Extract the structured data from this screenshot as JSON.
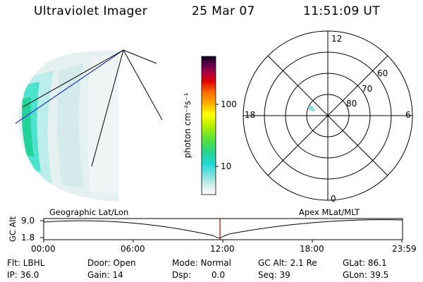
{
  "header": {
    "instrument": "Ultraviolet Imager",
    "date": "25 Mar 07",
    "time": "11:51:09 UT"
  },
  "colorbar": {
    "unit_label": "photon cm⁻²s⁻¹",
    "ticks": [
      "100",
      "10"
    ]
  },
  "polar_plot": {
    "mlt_labels": [
      "12",
      "18",
      "6",
      "0"
    ],
    "lat_labels": [
      "60",
      "70",
      "80"
    ]
  },
  "timeline": {
    "left_label": "Geographic Lat/Lon",
    "right_label": "Apex MLat/MLT",
    "y_axis_title": "GC Alt",
    "y_ticks": [
      "9.0",
      "1.8"
    ],
    "x_ticks": [
      "00:00",
      "06:00",
      "12:00",
      "18:00",
      "23:59"
    ],
    "current_time_marker_color": "#cc0000"
  },
  "status": {
    "row1": {
      "flt": "Flt: LBHL",
      "door": "Door: Open",
      "mode": "Mode: Normal",
      "gc_alt": "GC Alt: 2.1 Re",
      "glat": "GLat:  86.1"
    },
    "row2": {
      "ip": "IP: 36.0",
      "gain": "Gain: 14",
      "dsp_label": "Dsp:",
      "dsp_value": "0.0",
      "seq": "Seq: 39",
      "glon": "GLon:  39.5"
    }
  }
}
